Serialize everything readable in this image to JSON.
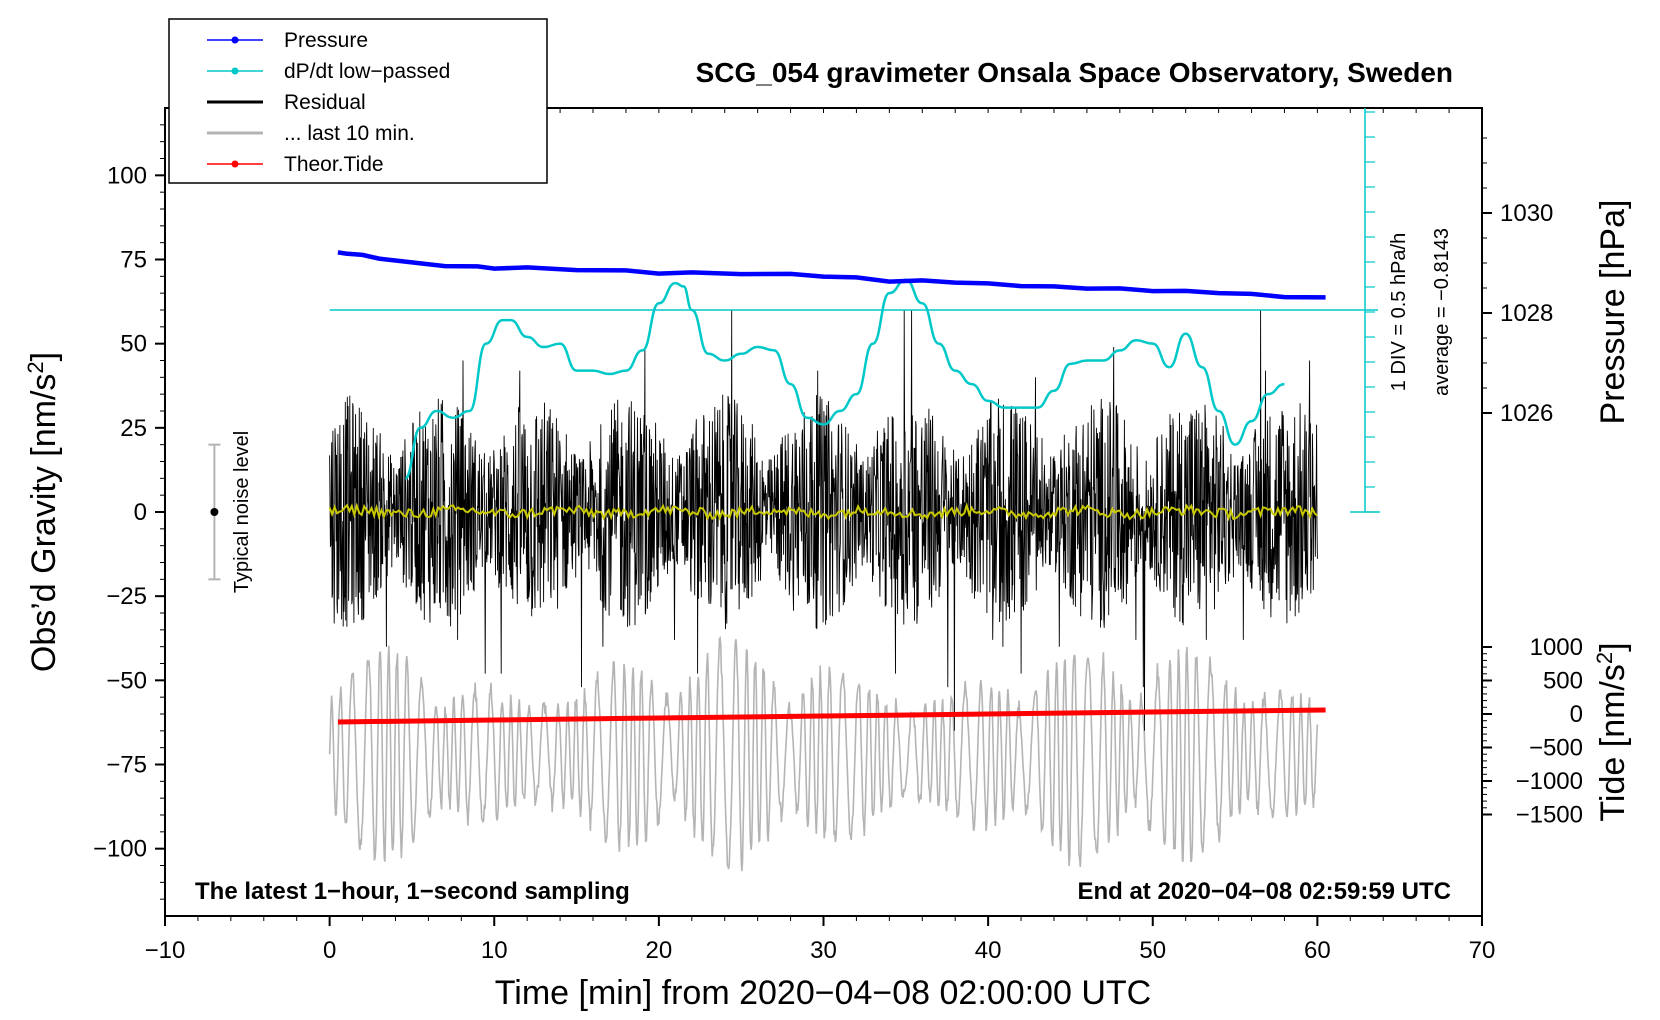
{
  "chart_data": {
    "type": "line",
    "title": "SCG_054 gravimeter Onsala Space Observatory, Sweden",
    "xlabel": "Time [min] from 2020−04−08 02:00:00 UTC",
    "ylabel_left": "Obs’d Gravity [nm/s",
    "ylabel_left_sup": "2",
    "ylabel_left_end": "]",
    "ylabel_right_pressure": "Pressure [hPa]",
    "ylabel_right_tide": "Tide [nm/s",
    "ylabel_right_tide_sup": "2",
    "ylabel_right_tide_end": "]",
    "xlim": [
      -10,
      70
    ],
    "ylim_left": [
      -120,
      120
    ],
    "x_ticks": [
      -10,
      0,
      10,
      20,
      30,
      40,
      50,
      60,
      70
    ],
    "x_tick_labels": [
      "−10",
      "0",
      "10",
      "20",
      "30",
      "40",
      "50",
      "60",
      "70"
    ],
    "y_ticks_left": [
      100,
      75,
      50,
      25,
      0,
      -25,
      -50,
      -75,
      -100
    ],
    "y_tick_labels_left": [
      "100",
      "75",
      "50",
      "25",
      "0",
      "−25",
      "−50",
      "−75",
      "−100"
    ],
    "pressure_ticks": [
      1030,
      1028,
      1026
    ],
    "pressure_tick_labels": [
      "1030",
      "1028",
      "1026"
    ],
    "tide_ticks": [
      1000,
      500,
      0,
      -500,
      -1000,
      -1500
    ],
    "tide_tick_labels": [
      "1000",
      "500",
      "0",
      "−500",
      "−1000",
      "−1500"
    ],
    "legend": [
      {
        "label": "Pressure",
        "color": "#0000ff",
        "marker": true
      },
      {
        "label": "dP/dt low−passed",
        "color": "#00c8c8",
        "marker": true
      },
      {
        "label": "Residual",
        "color": "#000000",
        "marker": false
      },
      {
        "label": "... last 10 min.",
        "color": "#b4b4b4",
        "marker": false
      },
      {
        "label": "Theor.Tide",
        "color": "#ff0000",
        "marker": true
      }
    ],
    "series": [
      {
        "name": "Pressure",
        "axis": "pressure",
        "color": "#0000ff",
        "x": [
          0.5,
          1,
          2,
          3,
          5,
          7,
          9,
          10,
          12,
          15,
          18,
          20,
          22,
          25,
          28,
          30,
          32,
          34,
          36,
          38,
          40,
          42,
          44,
          46,
          48,
          50,
          52,
          54,
          56,
          58,
          60.5
        ],
        "values": [
          1029.2,
          1029.2,
          1029.15,
          1029.1,
          1029.0,
          1028.95,
          1028.92,
          1028.9,
          1028.9,
          1028.87,
          1028.84,
          1028.8,
          1028.8,
          1028.79,
          1028.77,
          1028.74,
          1028.7,
          1028.64,
          1028.64,
          1028.62,
          1028.58,
          1028.55,
          1028.52,
          1028.5,
          1028.48,
          1028.45,
          1028.43,
          1028.41,
          1028.37,
          1028.33,
          1028.3
        ]
      },
      {
        "name": "dP/dt low−passed",
        "axis": "left",
        "color": "#00c8c8",
        "x": [
          4.6,
          5.5,
          6.5,
          7.5,
          8.5,
          9.5,
          10.5,
          11.0,
          12,
          13,
          14,
          15,
          16,
          17,
          18,
          19,
          20,
          21,
          21.5,
          22,
          23,
          24,
          25,
          26,
          27,
          28,
          29,
          30,
          31,
          32,
          33,
          34,
          35,
          36,
          37,
          38,
          39,
          40,
          41,
          42,
          43,
          44,
          45,
          46,
          47,
          48,
          49,
          50,
          51,
          52,
          53,
          54,
          55,
          56,
          57,
          58
        ],
        "values": [
          10,
          25,
          30,
          28,
          30,
          50,
          57,
          57,
          52,
          49,
          50,
          42,
          42,
          41,
          42,
          48,
          62,
          68,
          67,
          60,
          47,
          45,
          47,
          49,
          48,
          38,
          28,
          26,
          30,
          35,
          50,
          65,
          69,
          62,
          50,
          42,
          38,
          33,
          31,
          31,
          31,
          36,
          44,
          45,
          45,
          48,
          51,
          50,
          43,
          53,
          43,
          30,
          20,
          27,
          35,
          38
        ]
      },
      {
        "name": "Residual",
        "axis": "left",
        "color": "#000000",
        "x_range": [
          0,
          60
        ],
        "approx_envelope": 35,
        "peak_values": [
          45,
          -50,
          43,
          -38,
          40,
          46,
          -52,
          60,
          -40,
          49,
          -48,
          56,
          -65,
          42,
          -40
        ]
      },
      {
        "name": "... last 10 min.",
        "axis": "left",
        "color": "#b4b4b4",
        "x_range": [
          0,
          60
        ],
        "center": -72,
        "approx_envelope": 30
      },
      {
        "name": "yellow-running-mean",
        "axis": "left",
        "color": "#c8c800",
        "x_range": [
          0,
          60
        ],
        "approx_value": 0
      },
      {
        "name": "Theor.Tide",
        "axis": "tide",
        "color": "#ff0000",
        "x": [
          0.5,
          10,
          20,
          30,
          40,
          50,
          60.5
        ],
        "values": [
          -120,
          -90,
          -60,
          -30,
          0,
          30,
          60
        ]
      }
    ],
    "dpdt_scale": {
      "label_div": "1 DIV = 0.5 hPa/h",
      "label_avg": "average = −0.8143",
      "zero_line_at_left": 60
    },
    "noise_bar": {
      "label": "Typical noise level",
      "x": -7,
      "center": 0,
      "half_width": 20
    },
    "annotation_left": "The latest 1−hour, 1−second sampling",
    "annotation_right": "End at 2020−04−08 02:59:59 UTC",
    "grid": false
  }
}
